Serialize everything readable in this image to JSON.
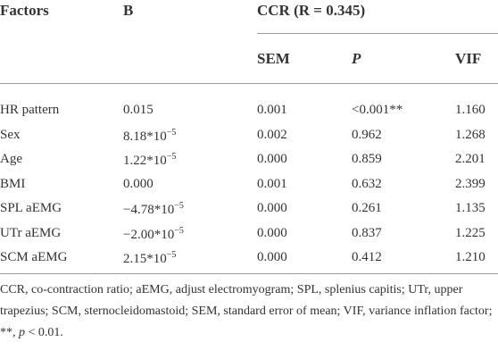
{
  "table": {
    "header": {
      "factors": "Factors",
      "b": "B",
      "group": "CCR (R = 0.345)",
      "sem": "SEM",
      "p": "P",
      "vif": "VIF"
    },
    "rows": [
      [
        "HR pattern",
        "0.015",
        "0.001",
        "<0.001**",
        "1.160"
      ],
      [
        "Sex",
        {
          "text": "8.18*10",
          "sup": "−5"
        },
        "0.002",
        "0.962",
        "1.268"
      ],
      [
        "Age",
        {
          "text": "1.22*10",
          "sup": "−5"
        },
        "0.000",
        "0.859",
        "2.201"
      ],
      [
        "BMI",
        "0.000",
        "0.001",
        "0.632",
        "2.399"
      ],
      [
        "SPL aEMG",
        {
          "text": "−4.78*10",
          "sup": "−5"
        },
        "0.000",
        "0.261",
        "1.135"
      ],
      [
        "UTr aEMG",
        {
          "text": "−2.00*10",
          "sup": "−5"
        },
        "0.000",
        "0.837",
        "1.225"
      ],
      [
        "SCM aEMG",
        {
          "text": "2.15*10",
          "sup": "−5"
        },
        "0.000",
        "0.412",
        "1.210"
      ]
    ]
  },
  "footnote": {
    "text": "CCR, co-contraction ratio; aEMG, adjust electromyogram; SPL, splenius capitis; UTr, upper trapezius; SCM, sternocleidomastoid; SEM, standard error of mean; VIF, variance inflation factor; **, ",
    "italic": "p",
    "end": " < 0.01."
  }
}
